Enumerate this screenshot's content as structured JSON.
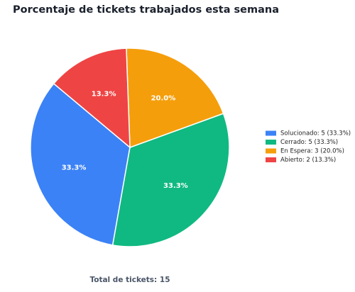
{
  "chart_data": {
    "type": "pie",
    "title": "Porcentaje de tickets trabajados esta semana",
    "categories": [
      "Solucionado: 5 (33.3%)",
      "Cerrado: 5 (33.3%)",
      "En Espera: 3 (20.0%)",
      "Abierto: 2 (13.3%)"
    ],
    "values": [
      33.3,
      33.3,
      20.0,
      13.3
    ],
    "value_labels": [
      "33.3%",
      "33.3%",
      "20.0%",
      "13.3%"
    ],
    "colors": [
      "#3b82f6",
      "#10b981",
      "#f59e0b",
      "#ef4444"
    ],
    "legend": "right",
    "footer": "Total de tickets: 15"
  }
}
